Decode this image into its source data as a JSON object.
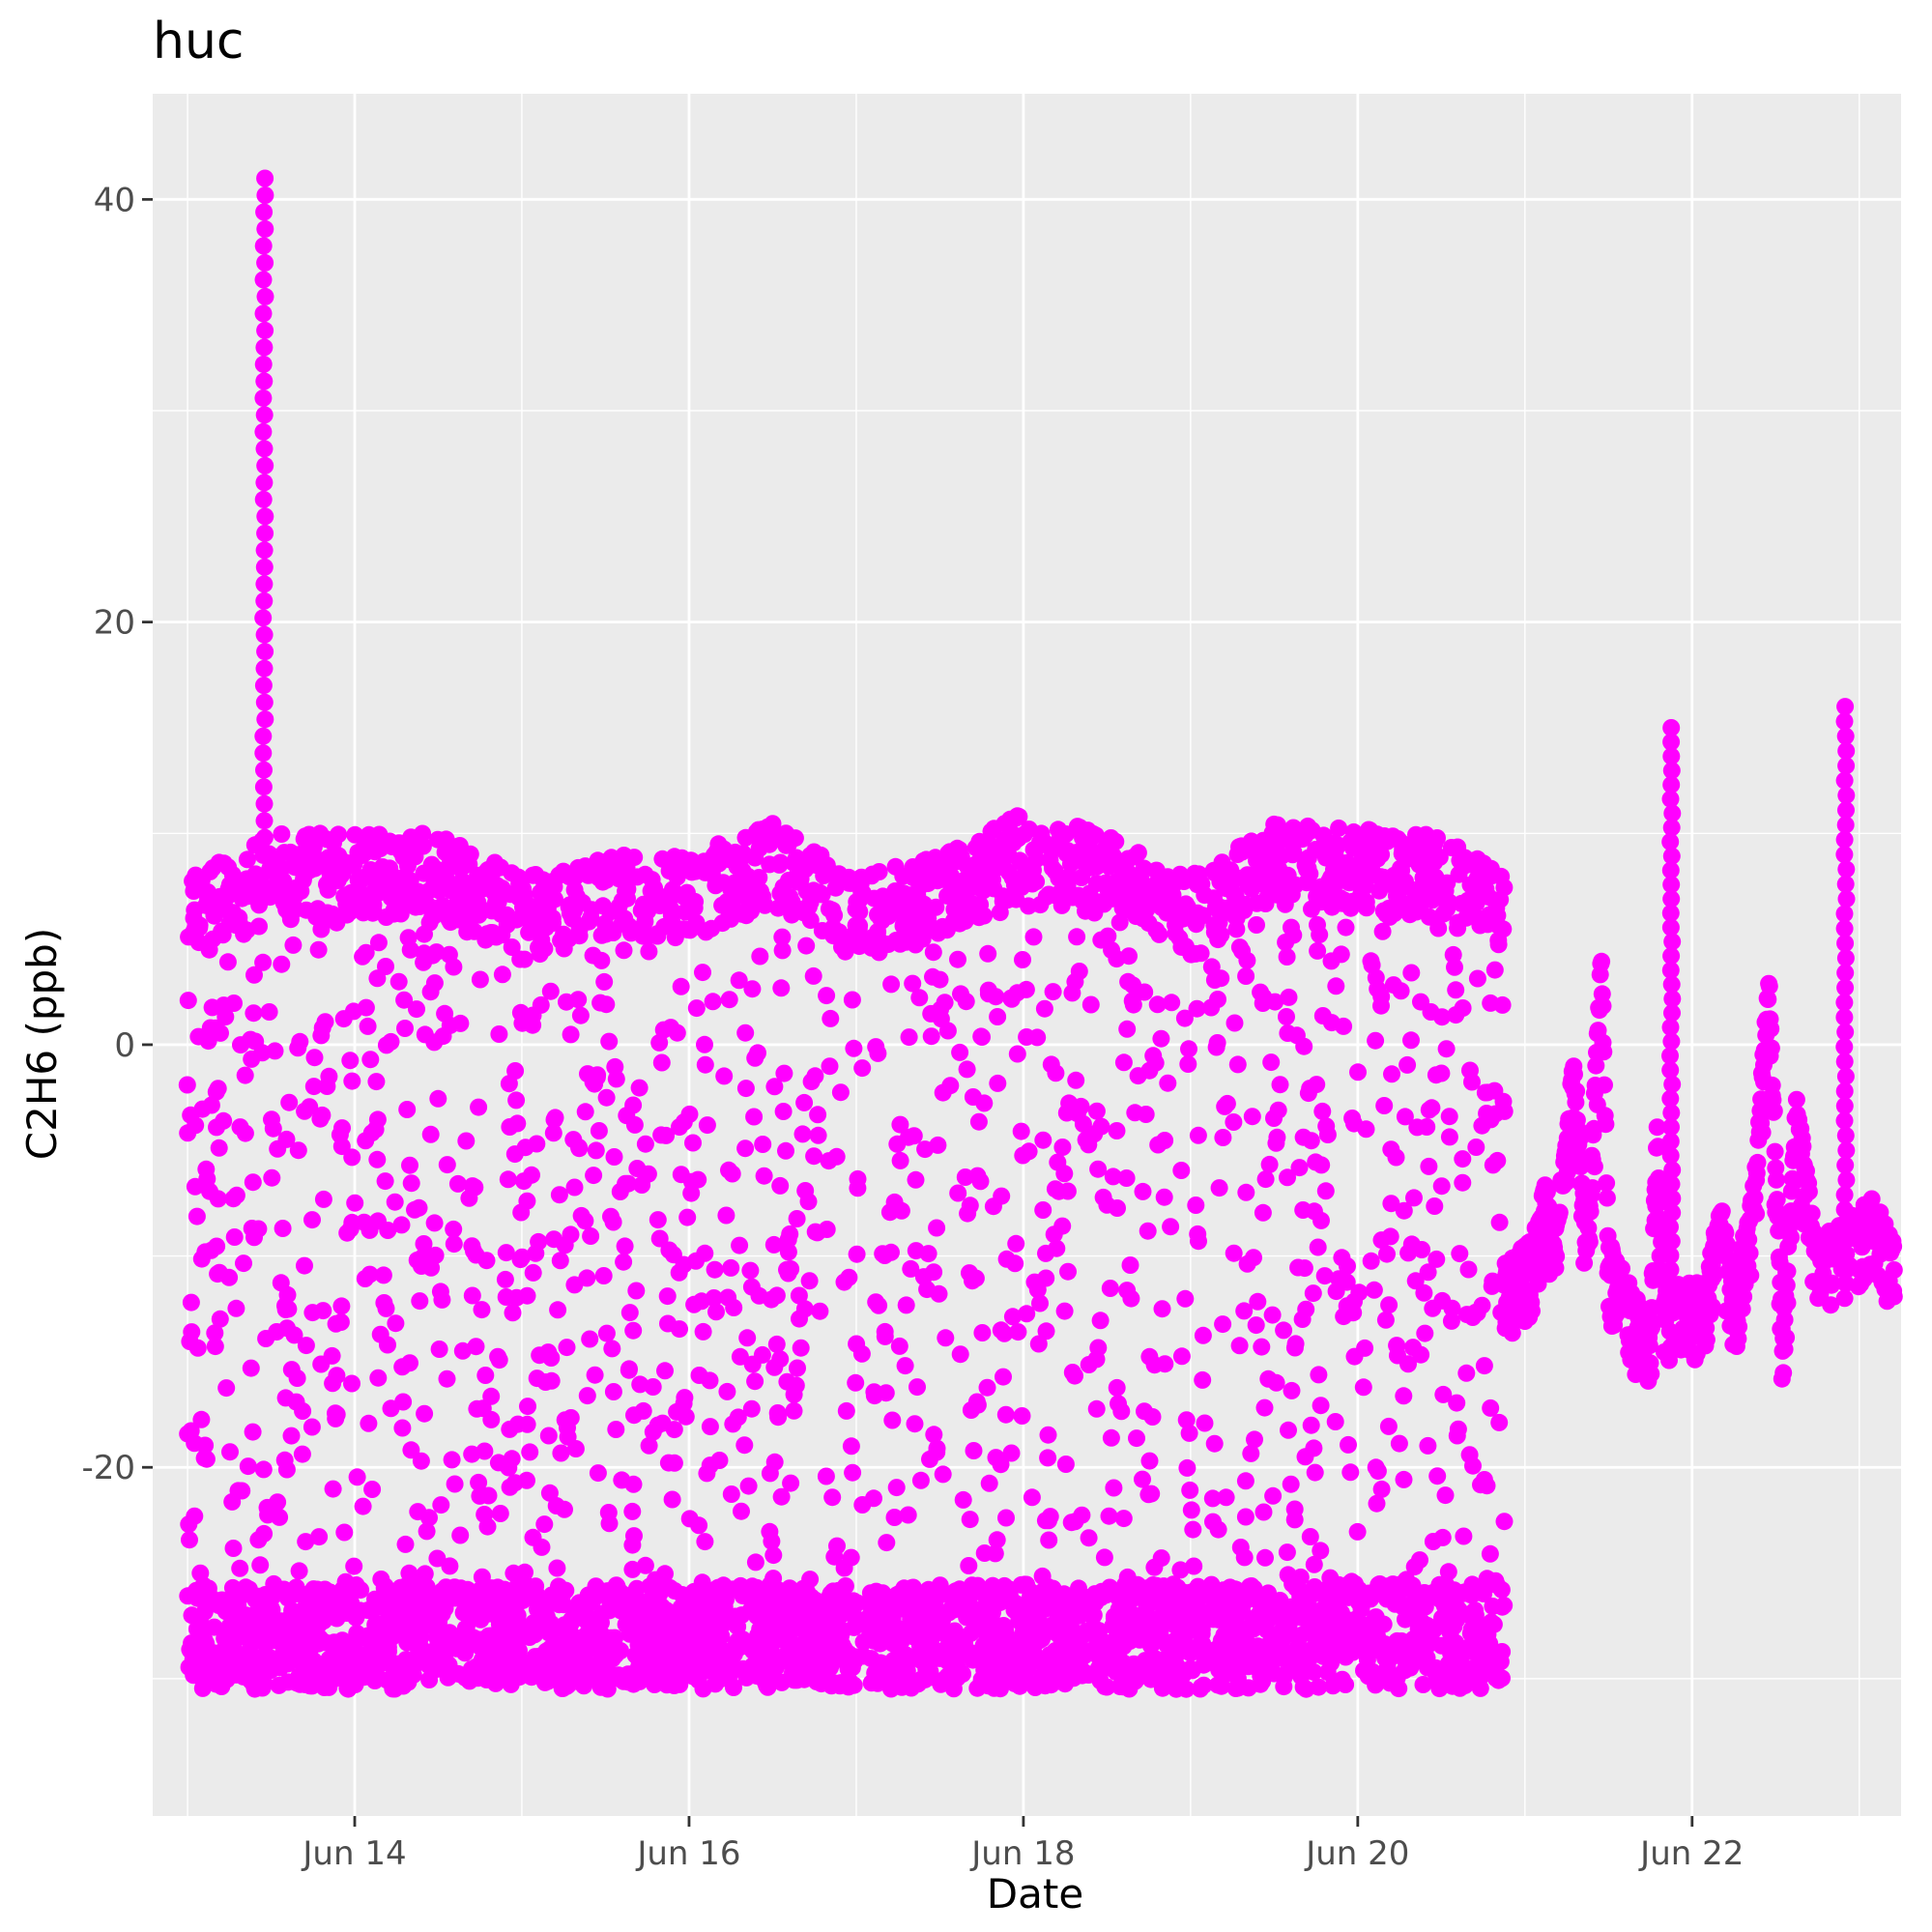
{
  "chart_data": {
    "type": "scatter",
    "title": "huc",
    "xlabel": "Date",
    "ylabel": "C2H6 (ppb)",
    "x_type": "date",
    "xlim": [
      "2023-06-12T19:00",
      "2023-06-23T06:00"
    ],
    "ylim": [
      -36.5,
      45
    ],
    "x_ticks": [
      "Jun 14",
      "Jun 16",
      "Jun 18",
      "Jun 20",
      "Jun 22"
    ],
    "x_tick_values": [
      "2023-06-14T00:00",
      "2023-06-16T00:00",
      "2023-06-18T00:00",
      "2023-06-20T00:00",
      "2023-06-22T00:00"
    ],
    "y_ticks": [
      -20,
      0,
      20,
      40
    ],
    "grid": true,
    "legend": "none",
    "point_color": "#FF00FF",
    "panel_color": "#EBEBEB",
    "dense_segment": {
      "start": "2023-06-13T00:00",
      "end": "2023-06-20T21:00",
      "min": -32,
      "max": 11,
      "gaps": [
        [
          "2023-06-17T01:00",
          "2023-06-17T02:00"
        ],
        [
          "2023-06-19T02:00",
          "2023-06-19T03:00"
        ]
      ]
    },
    "profile": [
      {
        "x": "2023-06-13T00:00",
        "y": 8
      },
      {
        "x": "2023-06-13T12:00",
        "y": 10
      },
      {
        "x": "2023-06-14T12:00",
        "y": 10
      },
      {
        "x": "2023-06-15T00:00",
        "y": 8
      },
      {
        "x": "2023-06-15T12:00",
        "y": 9
      },
      {
        "x": "2023-06-16T00:00",
        "y": 9
      },
      {
        "x": "2023-06-16T12:00",
        "y": 10.5
      },
      {
        "x": "2023-06-17T00:00",
        "y": 8
      },
      {
        "x": "2023-06-17T12:00",
        "y": 9
      },
      {
        "x": "2023-06-18T00:00",
        "y": 11
      },
      {
        "x": "2023-06-18T12:00",
        "y": 10
      },
      {
        "x": "2023-06-19T00:00",
        "y": 8
      },
      {
        "x": "2023-06-19T12:00",
        "y": 10.5
      },
      {
        "x": "2023-06-20T12:00",
        "y": 10
      },
      {
        "x": "2023-06-20T21:00",
        "y": 8
      }
    ],
    "spikes": [
      {
        "x": "2023-06-13T11:00",
        "y": 41
      },
      {
        "x": "2023-06-21T21:00",
        "y": 15
      },
      {
        "x": "2023-06-22T22:00",
        "y": 16
      }
    ],
    "sparse_segment": [
      {
        "x": "2023-06-20T21:00",
        "y": -11
      },
      {
        "x": "2023-06-21T01:00",
        "y": -10
      },
      {
        "x": "2023-06-21T03:00",
        "y": -7
      },
      {
        "x": "2023-06-21T04:00",
        "y": -10
      },
      {
        "x": "2023-06-21T06:00",
        "y": -5
      },
      {
        "x": "2023-06-21T07:00",
        "y": -1
      },
      {
        "x": "2023-06-21T09:00",
        "y": -10
      },
      {
        "x": "2023-06-21T11:00",
        "y": 4
      },
      {
        "x": "2023-06-21T12:00",
        "y": -10
      },
      {
        "x": "2023-06-21T15:00",
        "y": -12
      },
      {
        "x": "2023-06-21T18:00",
        "y": -14
      },
      {
        "x": "2023-06-21T19:00",
        "y": -4
      },
      {
        "x": "2023-06-21T20:00",
        "y": -12
      },
      {
        "x": "2023-06-22T02:00",
        "y": -12
      },
      {
        "x": "2023-06-22T04:00",
        "y": -8
      },
      {
        "x": "2023-06-22T06:00",
        "y": -12
      },
      {
        "x": "2023-06-22T09:00",
        "y": -7
      },
      {
        "x": "2023-06-22T11:00",
        "y": 3
      },
      {
        "x": "2023-06-22T13:00",
        "y": -14
      },
      {
        "x": "2023-06-22T15:00",
        "y": -3
      },
      {
        "x": "2023-06-22T18:00",
        "y": -10
      },
      {
        "x": "2023-06-23T02:00",
        "y": -8
      },
      {
        "x": "2023-06-23T05:00",
        "y": -10
      }
    ]
  }
}
